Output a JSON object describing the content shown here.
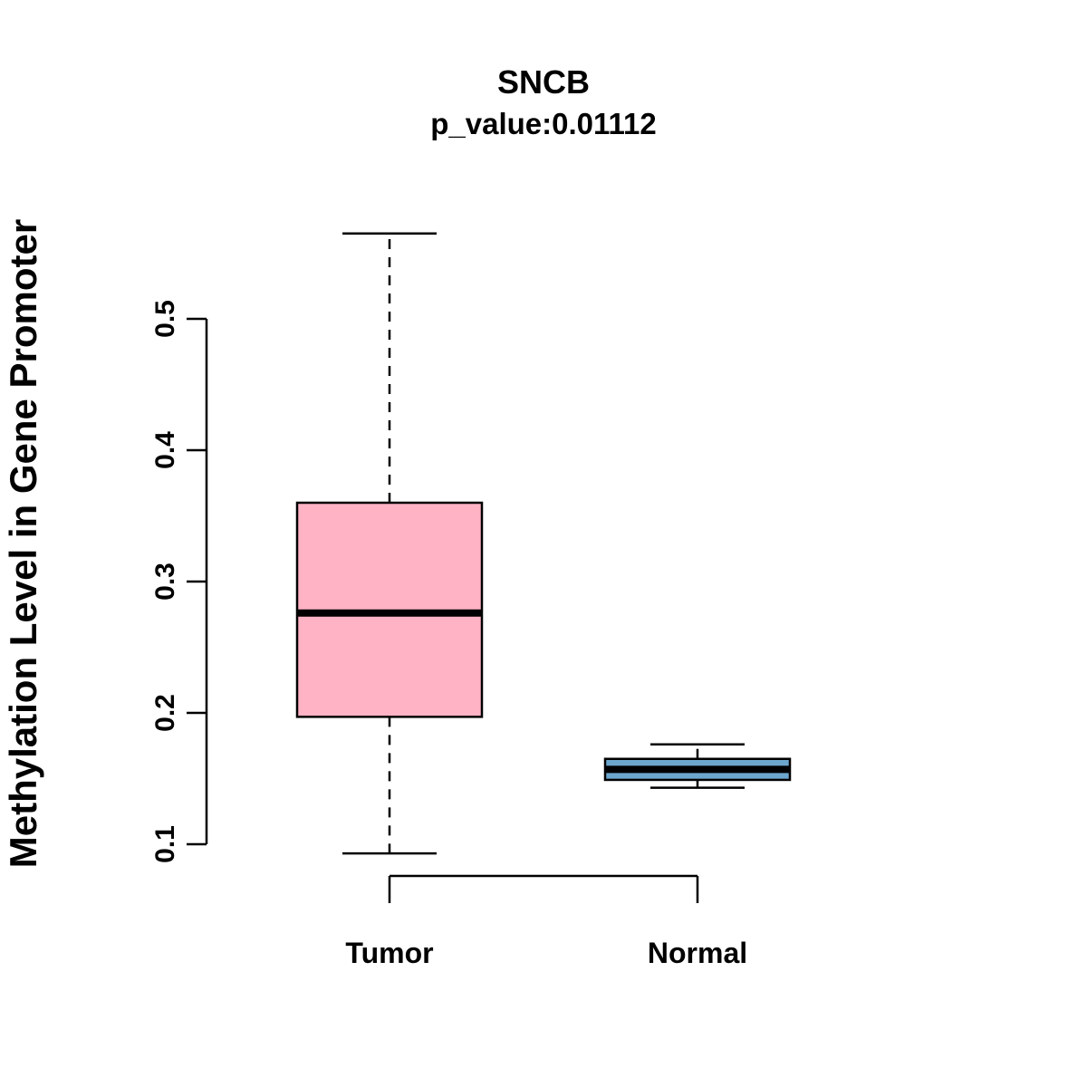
{
  "chart_data": {
    "type": "boxplot",
    "title": "SNCB",
    "subtitle": "p_value:0.01112",
    "ylabel": "Methylation Level in Gene Promoter",
    "categories": [
      "Tumor",
      "Normal"
    ],
    "yticks": [
      0.1,
      0.2,
      0.3,
      0.4,
      0.5
    ],
    "ylim": [
      0.09,
      0.57
    ],
    "grid": false,
    "legend": "none",
    "series": [
      {
        "name": "Tumor",
        "color": "#FFB3C5",
        "lower_whisker": 0.093,
        "q1": 0.197,
        "median": 0.276,
        "q3": 0.36,
        "upper_whisker": 0.565
      },
      {
        "name": "Normal",
        "color": "#6CA6CD",
        "lower_whisker": 0.143,
        "q1": 0.149,
        "median": 0.157,
        "q3": 0.165,
        "upper_whisker": 0.176
      }
    ],
    "colors": {
      "box_border": "#000000",
      "median_line": "#000000",
      "background": "#ffffff"
    }
  }
}
